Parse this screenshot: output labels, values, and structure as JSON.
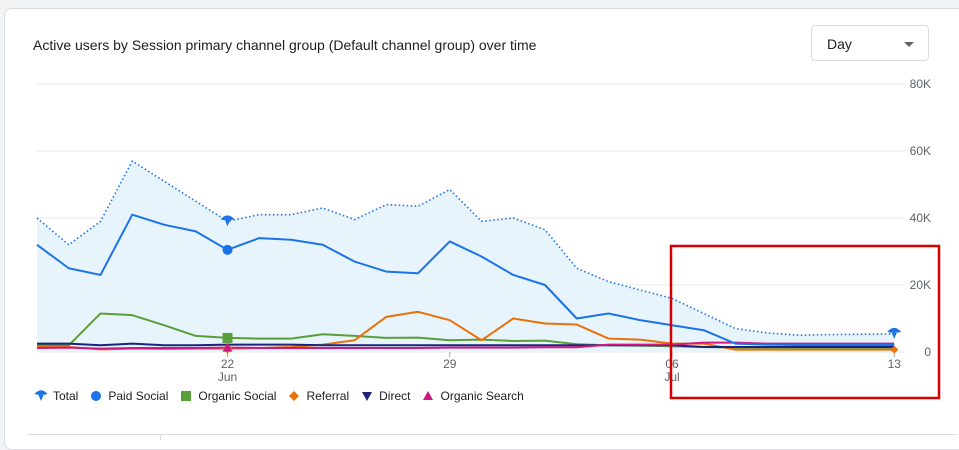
{
  "card": {
    "title": "Active users by Session primary channel group (Default channel group) over time",
    "granularity": "Day"
  },
  "chart_data": {
    "type": "line",
    "ylim": [
      0,
      80000
    ],
    "y_ticks": [
      "80K",
      "60K",
      "40K",
      "20K",
      "0"
    ],
    "y_tick_values": [
      80000,
      60000,
      40000,
      20000,
      0
    ],
    "x_tick_labels": [
      {
        "day_index": 6,
        "day": "22",
        "month": "Jun"
      },
      {
        "day_index": 13,
        "day": "29",
        "month": ""
      },
      {
        "day_index": 20,
        "day": "06",
        "month": "Jul"
      },
      {
        "day_index": 27,
        "day": "13",
        "month": ""
      }
    ],
    "highlight_index": 6,
    "series": [
      {
        "name": "Total",
        "color": "#1a73e8",
        "marker": "drop",
        "values": [
          40000,
          32000,
          39000,
          57000,
          51000,
          45000,
          39000,
          41000,
          41000,
          43000,
          39500,
          44000,
          43500,
          48500,
          39000,
          40000,
          36500,
          25000,
          21000,
          18500,
          16000,
          11500,
          7000,
          5700,
          5000,
          5200,
          5300,
          5400
        ]
      },
      {
        "name": "Paid Social",
        "color": "#1a73e8",
        "marker": "circle",
        "values": [
          32000,
          25000,
          23000,
          41000,
          38000,
          36000,
          30500,
          34000,
          33500,
          32000,
          27000,
          24000,
          23500,
          33000,
          28500,
          23000,
          20000,
          10000,
          11500,
          9500,
          8000,
          6500,
          2500,
          2200,
          2100,
          2100,
          2100,
          2100
        ]
      },
      {
        "name": "Organic Social",
        "color": "#5a9e3a",
        "marker": "square",
        "values": [
          2000,
          2000,
          11500,
          11000,
          8000,
          4800,
          4200,
          4000,
          4000,
          5300,
          4800,
          4200,
          4300,
          3500,
          3700,
          3300,
          3400,
          2300,
          2000,
          1900,
          1700,
          1500,
          1300,
          1300,
          1300,
          1300,
          1300,
          1300
        ]
      },
      {
        "name": "Referral",
        "color": "#e8710a",
        "marker": "diamond",
        "values": [
          1500,
          1500,
          800,
          1000,
          900,
          1000,
          1000,
          1200,
          1500,
          2200,
          3500,
          10500,
          12000,
          9500,
          3500,
          10000,
          8500,
          8200,
          4000,
          3700,
          2500,
          2500,
          700,
          700,
          700,
          700,
          700,
          700
        ]
      },
      {
        "name": "Direct",
        "color": "#1a237e",
        "marker": "triangle-down",
        "values": [
          2500,
          2500,
          2000,
          2500,
          2000,
          2000,
          2200,
          2200,
          2200,
          2000,
          2000,
          2000,
          2000,
          2000,
          2000,
          2000,
          2000,
          2000,
          2000,
          2000,
          2000,
          1500,
          1500,
          1500,
          1500,
          1500,
          1500,
          1500
        ]
      },
      {
        "name": "Organic Search",
        "color": "#d01884",
        "marker": "triangle-up",
        "values": [
          1200,
          1300,
          1000,
          1200,
          1200,
          1200,
          1300,
          1200,
          1200,
          1200,
          1200,
          1200,
          1200,
          1300,
          1300,
          1300,
          1400,
          1400,
          2200,
          2200,
          2200,
          2800,
          2800,
          2500,
          2500,
          2500,
          2500,
          2500
        ]
      }
    ]
  },
  "legend_order": [
    "Total",
    "Paid Social",
    "Organic Social",
    "Referral",
    "Direct",
    "Organic Search"
  ],
  "colors": {
    "annotation_box": "#d50000",
    "total_fill": "#e8f4fc",
    "grid": "#e8eaed"
  }
}
